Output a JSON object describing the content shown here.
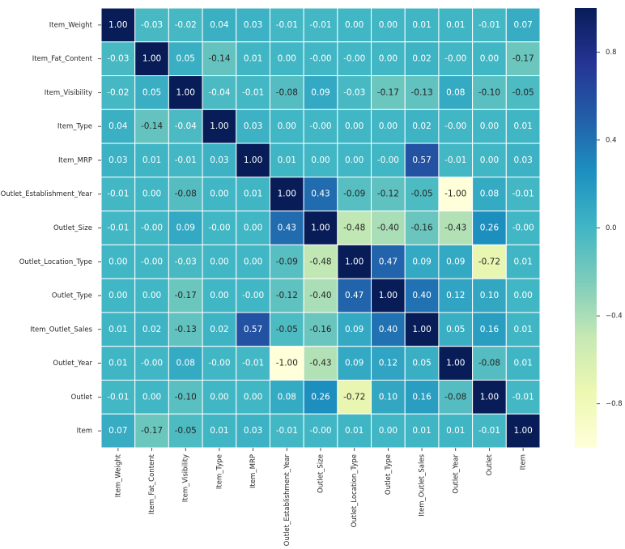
{
  "chart_data": {
    "type": "heatmap",
    "x_categories": [
      "Item_Weight",
      "Item_Fat_Content",
      "Item_Visibility",
      "Item_Type",
      "Item_MRP",
      "Outlet_Establishment_Year",
      "Outlet_Size",
      "Outlet_Location_Type",
      "Outlet_Type",
      "Item_Outlet_Sales",
      "Outlet_Year",
      "Outlet",
      "Item"
    ],
    "y_categories": [
      "Item_Weight",
      "Item_Fat_Content",
      "Item_Visibility",
      "Item_Type",
      "Item_MRP",
      "Outlet_Establishment_Year",
      "Outlet_Size",
      "Outlet_Location_Type",
      "Outlet_Type",
      "Item_Outlet_Sales",
      "Outlet_Year",
      "Outlet",
      "Item"
    ],
    "values": [
      [
        1,
        -0.03,
        -0.02,
        0.04,
        0.03,
        -0.01,
        -0.01,
        0,
        0,
        0.01,
        0.01,
        -0.01,
        0.07
      ],
      [
        -0.03,
        1,
        0.05,
        -0.14,
        0.01,
        0,
        0,
        0,
        0,
        0.02,
        0,
        0,
        -0.17
      ],
      [
        -0.02,
        0.05,
        1,
        -0.04,
        -0.01,
        -0.08,
        0.09,
        -0.03,
        -0.17,
        -0.13,
        0.08,
        -0.1,
        -0.05
      ],
      [
        0.04,
        -0.14,
        -0.04,
        1,
        0.03,
        0,
        0,
        0,
        0,
        0.02,
        0,
        0,
        0.01
      ],
      [
        0.03,
        0.01,
        -0.01,
        0.03,
        1,
        0.01,
        0,
        0,
        0,
        0.57,
        -0.01,
        0,
        0.03
      ],
      [
        -0.01,
        0,
        -0.08,
        0,
        0.01,
        1,
        0.43,
        -0.09,
        -0.12,
        -0.05,
        -1,
        0.08,
        -0.01
      ],
      [
        -0.01,
        0,
        0.09,
        0,
        0,
        0.43,
        1,
        -0.48,
        -0.4,
        -0.16,
        -0.43,
        0.26,
        0
      ],
      [
        0,
        0,
        -0.03,
        0,
        0,
        -0.09,
        -0.48,
        1,
        0.47,
        0.09,
        0.09,
        -0.72,
        0.01
      ],
      [
        0,
        0,
        -0.17,
        0,
        0,
        -0.12,
        -0.4,
        0.47,
        1,
        0.4,
        0.12,
        0.1,
        0
      ],
      [
        0.01,
        0.02,
        -0.13,
        0.02,
        0.57,
        -0.05,
        -0.16,
        0.09,
        0.4,
        1,
        0.05,
        0.16,
        0.01
      ],
      [
        0.01,
        0,
        0.08,
        0,
        -0.01,
        -1,
        -0.43,
        0.09,
        0.12,
        0.05,
        1,
        -0.08,
        0.01
      ],
      [
        -0.01,
        0,
        -0.1,
        0,
        0,
        0.08,
        0.26,
        -0.72,
        0.1,
        0.16,
        -0.08,
        1,
        -0.01
      ],
      [
        0.07,
        -0.17,
        -0.05,
        0.01,
        0.03,
        -0.01,
        0,
        0.01,
        0,
        0.01,
        0.01,
        -0.01,
        1
      ]
    ],
    "value_labels": [
      [
        "1.00",
        "-0.03",
        "-0.02",
        "0.04",
        "0.03",
        "-0.01",
        "-0.01",
        "0.00",
        "0.00",
        "0.01",
        "0.01",
        "-0.01",
        "0.07"
      ],
      [
        "-0.03",
        "1.00",
        "0.05",
        "-0.14",
        "0.01",
        "0.00",
        "-0.00",
        "-0.00",
        "0.00",
        "0.02",
        "-0.00",
        "0.00",
        "-0.17"
      ],
      [
        "-0.02",
        "0.05",
        "1.00",
        "-0.04",
        "-0.01",
        "-0.08",
        "0.09",
        "-0.03",
        "-0.17",
        "-0.13",
        "0.08",
        "-0.10",
        "-0.05"
      ],
      [
        "0.04",
        "-0.14",
        "-0.04",
        "1.00",
        "0.03",
        "0.00",
        "-0.00",
        "0.00",
        "0.00",
        "0.02",
        "-0.00",
        "0.00",
        "0.01"
      ],
      [
        "0.03",
        "0.01",
        "-0.01",
        "0.03",
        "1.00",
        "0.01",
        "0.00",
        "0.00",
        "-0.00",
        "0.57",
        "-0.01",
        "0.00",
        "0.03"
      ],
      [
        "-0.01",
        "0.00",
        "-0.08",
        "0.00",
        "0.01",
        "1.00",
        "0.43",
        "-0.09",
        "-0.12",
        "-0.05",
        "-1.00",
        "0.08",
        "-0.01"
      ],
      [
        "-0.01",
        "-0.00",
        "0.09",
        "-0.00",
        "0.00",
        "0.43",
        "1.00",
        "-0.48",
        "-0.40",
        "-0.16",
        "-0.43",
        "0.26",
        "-0.00"
      ],
      [
        "0.00",
        "-0.00",
        "-0.03",
        "0.00",
        "0.00",
        "-0.09",
        "-0.48",
        "1.00",
        "0.47",
        "0.09",
        "0.09",
        "-0.72",
        "0.01"
      ],
      [
        "0.00",
        "0.00",
        "-0.17",
        "0.00",
        "-0.00",
        "-0.12",
        "-0.40",
        "0.47",
        "1.00",
        "0.40",
        "0.12",
        "0.10",
        "0.00"
      ],
      [
        "0.01",
        "0.02",
        "-0.13",
        "0.02",
        "0.57",
        "-0.05",
        "-0.16",
        "0.09",
        "0.40",
        "1.00",
        "0.05",
        "0.16",
        "0.01"
      ],
      [
        "0.01",
        "-0.00",
        "0.08",
        "-0.00",
        "-0.01",
        "-1.00",
        "-0.43",
        "0.09",
        "0.12",
        "0.05",
        "1.00",
        "-0.08",
        "0.01"
      ],
      [
        "-0.01",
        "0.00",
        "-0.10",
        "0.00",
        "0.00",
        "0.08",
        "0.26",
        "-0.72",
        "0.10",
        "0.16",
        "-0.08",
        "1.00",
        "-0.01"
      ],
      [
        "0.07",
        "-0.17",
        "-0.05",
        "0.01",
        "0.03",
        "-0.01",
        "-0.00",
        "0.01",
        "0.00",
        "0.01",
        "0.01",
        "-0.01",
        "1.00"
      ]
    ],
    "colorscale": [
      "#ffffd9",
      "#edf8b1",
      "#c7e9b4",
      "#7fcdbb",
      "#41b6c4",
      "#1d91c0",
      "#225ea8",
      "#253494",
      "#081d58"
    ],
    "clim": [
      -1,
      1
    ],
    "colorbar_ticks": [
      {
        "value": 0.8,
        "label": "0.8"
      },
      {
        "value": 0.4,
        "label": "0.4"
      },
      {
        "value": 0,
        "label": "0.0"
      },
      {
        "value": -0.4,
        "label": "−0.4"
      },
      {
        "value": -0.8,
        "label": "−0.8"
      }
    ]
  }
}
